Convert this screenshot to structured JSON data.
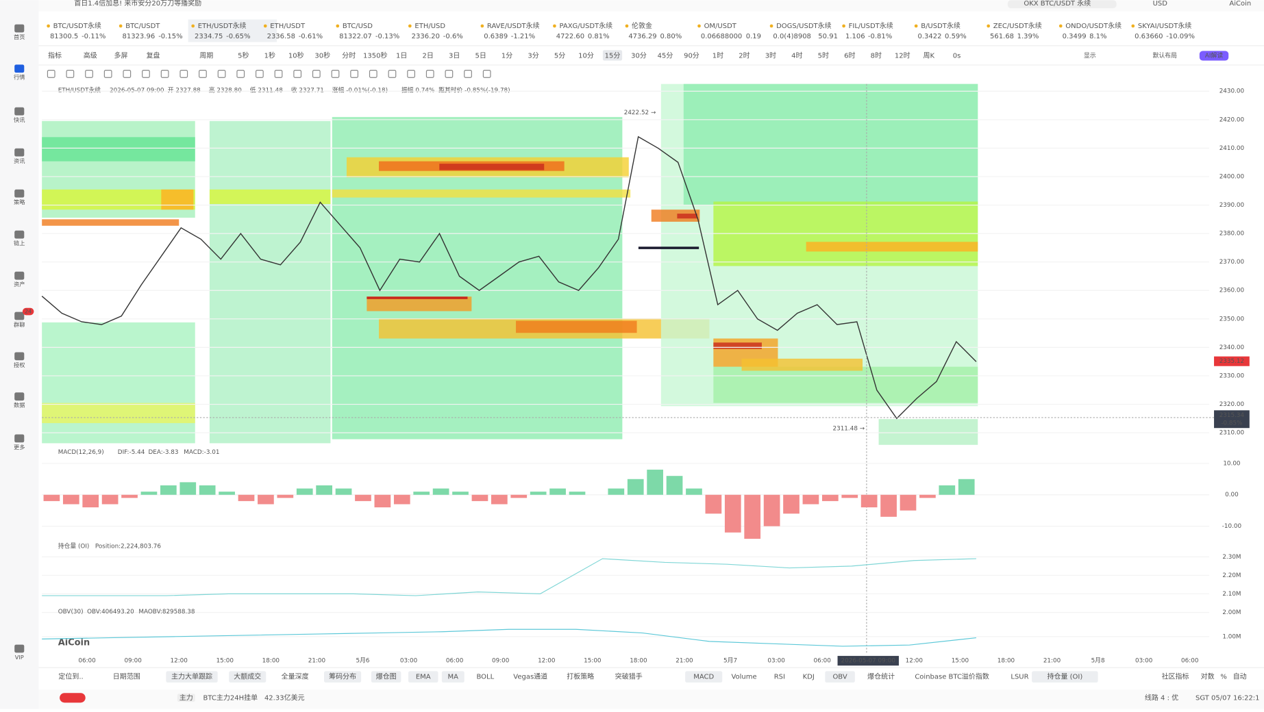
{
  "banner": "首日1.4倍加息! 来市安分20万刀等播奖励",
  "search": "OKX BTC/USDT 永续",
  "currency": "USD",
  "user": "AiCoin",
  "sidebar": [
    {
      "label": "首页"
    },
    {
      "label": "行情"
    },
    {
      "label": "快讯"
    },
    {
      "label": "资讯"
    },
    {
      "label": "策略"
    },
    {
      "label": "链上"
    },
    {
      "label": "资产"
    },
    {
      "label": "群聊",
      "badge": "24"
    },
    {
      "label": "授权"
    },
    {
      "label": "数据"
    },
    {
      "label": "更多"
    },
    {
      "label": "VIP"
    }
  ],
  "active_sidebar": 1,
  "tickers": [
    {
      "name": "BTC/USDT永续",
      "price": "81300.5",
      "change": "-0.11%"
    },
    {
      "name": "BTC/USDT",
      "price": "81323.96",
      "change": "-0.15%"
    },
    {
      "name": "ETH/USDT永续",
      "price": "2334.75",
      "change": "-0.65%"
    },
    {
      "name": "ETH/USDT",
      "price": "2336.58",
      "change": "-0.61%"
    },
    {
      "name": "BTC/USD",
      "price": "81322.07",
      "change": "-0.13%"
    },
    {
      "name": "ETH/USD",
      "price": "2336.20",
      "change": "-0.6%"
    },
    {
      "name": "RAVE/USDT永续",
      "price": "0.6389",
      "change": "-1.21%"
    },
    {
      "name": "PAXG/USDT永续",
      "price": "4722.60",
      "change": "0.81%"
    },
    {
      "name": "伦敦金",
      "price": "4736.29",
      "change": "0.80%"
    },
    {
      "name": "OM/USDT",
      "price": "0.06688000",
      "change": "0.19"
    },
    {
      "name": "DOGS/USDT永续",
      "price": "0.0(4)8908",
      "change": "50.91"
    },
    {
      "name": "FIL/USDT永续",
      "price": "1.106",
      "change": "-0.81%"
    },
    {
      "name": "B/USDT永续",
      "price": "0.3422",
      "change": "0.59%"
    },
    {
      "name": "ZEC/USDT永续",
      "price": "561.68",
      "change": "1.39%"
    },
    {
      "name": "ONDO/USDT永续",
      "price": "0.3499",
      "change": "8.1%"
    },
    {
      "name": "SKYAI/USDT永续",
      "price": "0.63660",
      "change": "-10.09%"
    }
  ],
  "active_ticker": 2,
  "periods": [
    "指标",
    "高级",
    "多屏",
    "复盘",
    "周期",
    "5秒",
    "1秒",
    "10秒",
    "30秒",
    "分时",
    "1350秒",
    "1日",
    "2日",
    "3日",
    "5日",
    "1分",
    "3分",
    "5分",
    "10分",
    "15分",
    "30分",
    "45分",
    "90分",
    "1时",
    "2时",
    "3时",
    "4时",
    "5时",
    "6时",
    "8时",
    "12时",
    "周K",
    "0s"
  ],
  "active_period": 19,
  "toolbar_right": [
    "显示",
    "默认布局",
    "AI解读"
  ],
  "info": {
    "symbol": "ETH/USDT永续",
    "time": "2026-05-07 09:00",
    "fields": [
      "开 2327.88",
      "高 2328.80",
      "低 2311.48",
      "收 2327.71",
      "涨幅 -0.01%(-0.18)",
      "振幅 0.74%",
      "距其时价 -0.85%(-19.78)"
    ]
  },
  "price_chart": {
    "type": "line",
    "ylim": [
      2305.75,
      2432.55
    ],
    "yticks": [
      {
        "value": 2430,
        "label": "2430.00"
      },
      {
        "value": 2420,
        "label": "2420.00"
      },
      {
        "value": 2410,
        "label": "2410.00"
      },
      {
        "value": 2400,
        "label": "2400.00"
      },
      {
        "value": 2390,
        "label": "2390.00"
      },
      {
        "value": 2380,
        "label": "2380.00"
      },
      {
        "value": 2370,
        "label": "2370.00"
      },
      {
        "value": 2360,
        "label": "2360.00"
      },
      {
        "value": 2350,
        "label": "2350.00"
      },
      {
        "value": 2340,
        "label": "2340.00"
      },
      {
        "value": 2330,
        "label": "2330.00"
      },
      {
        "value": 2320,
        "label": "2320.00"
      },
      {
        "value": 2310,
        "label": "2310.00"
      }
    ],
    "closes": [
      2358,
      2352,
      2349,
      2348,
      2351,
      2362,
      2372,
      2382,
      2378,
      2371,
      2380,
      2371,
      2369,
      2377,
      2391,
      2383,
      2375,
      2360,
      2371,
      2370,
      2380,
      2365,
      2360,
      2365,
      2370,
      2372,
      2363,
      2360,
      2368,
      2378,
      2414,
      2410,
      2405,
      2385,
      2355,
      2360,
      2350,
      2346,
      2352,
      2355,
      2348,
      2349,
      2325,
      2315,
      2322,
      2328,
      2342,
      2335
    ],
    "color": "#333",
    "high": {
      "value": 2422.52,
      "label": "2422.52 →"
    },
    "low": {
      "value": 2311.48,
      "label": "2311.48 →"
    },
    "last_price": {
      "value": 2335.12,
      "label": "2335.12"
    },
    "crosshair": {
      "value": 2315.34,
      "label": "2315.34",
      "change": "-0.85%"
    }
  },
  "macd": {
    "title": "MACD(12,26,9)",
    "dif": "DIF:-5.44",
    "dea": "DEA:-3.83",
    "macd": "MACD:-3.01",
    "ylim": [
      -14.36,
      14.87
    ],
    "yticks": [
      {
        "value": 10,
        "label": "10.00"
      },
      {
        "value": 0,
        "label": "0.00"
      },
      {
        "value": -10,
        "label": "-10.00"
      }
    ],
    "hist": [
      -2,
      -3,
      -4,
      -3,
      -1,
      1,
      3,
      4,
      3,
      1,
      -2,
      -3,
      -1,
      2,
      3,
      2,
      -2,
      -4,
      -3,
      1,
      2,
      1,
      -2,
      -3,
      -1,
      1,
      2,
      1,
      0,
      2,
      5,
      8,
      6,
      2,
      -6,
      -12,
      -14,
      -10,
      -6,
      -3,
      -2,
      -1,
      -4,
      -7,
      -5,
      -1,
      3,
      5
    ]
  },
  "oi": {
    "title": "持仓量 (OI)",
    "position": "Position:2,224,803.76",
    "ylim": [
      2043000,
      2383000
    ],
    "yticks": [
      {
        "value": 2300000,
        "label": "2.30M"
      },
      {
        "value": 2200000,
        "label": "2.20M"
      },
      {
        "value": 2100000,
        "label": "2.10M"
      }
    ],
    "values": [
      2090000,
      2090000,
      2090000,
      2100000,
      2100000,
      2100000,
      2090000,
      2110000,
      2100000,
      2290000,
      2270000,
      2260000,
      2240000,
      2250000,
      2280000,
      2290000
    ],
    "color": "#7fd6d6"
  },
  "obv": {
    "title": "OBV(30)",
    "obv": "OBV:406493.20",
    "maobv": "MAOBV:829588.38",
    "ylim": [
      500000,
      2270000
    ],
    "yticks": [
      {
        "value": 2000000,
        "label": "2.00M"
      },
      {
        "value": 1000000,
        "label": "1.00M"
      }
    ],
    "values": [
      900000,
      950000,
      1000000,
      1050000,
      1100000,
      1150000,
      1200000,
      1300000,
      1300000,
      1150000,
      800000,
      700000,
      600000,
      650000,
      950000
    ],
    "color": "#5cc8d8"
  },
  "logo": "AiCoin",
  "time_axis": [
    "06:00",
    "09:00",
    "12:00",
    "15:00",
    "18:00",
    "21:00",
    "5月6",
    "03:00",
    "06:00",
    "09:00",
    "12:00",
    "15:00",
    "18:00",
    "21:00",
    "5月7",
    "03:00",
    "06:00",
    "2026-05-07 09:00",
    "12:00",
    "15:00",
    "18:00",
    "21:00",
    "5月8",
    "03:00",
    "06:00"
  ],
  "time_highlight": 17,
  "bottom_tabs": [
    "定位到..",
    "日期范围",
    "主力大单跟踪",
    "大额成交",
    "全量深度",
    "筹码分布",
    "爆仓图",
    "EMA",
    "MA",
    "BOLL",
    "Vegas通道",
    "打板策略",
    "突破猎手",
    "MACD",
    "Volume",
    "RSI",
    "KDJ",
    "OBV",
    "爆仓统计",
    "Coinbase BTC溢价指数",
    "LSUR",
    "持仓量 (OI)",
    "社区指标",
    "对数",
    "%",
    "自动"
  ],
  "active_tabs": [
    2,
    3,
    5,
    6,
    7,
    8,
    13,
    17,
    21
  ],
  "status": {
    "tag": "主力",
    "text": "BTC主力24H挂单",
    "amount": "42.33亿美元",
    "line": "线路 4 : 优",
    "clock": "SGT 05/07 16:22:1"
  }
}
